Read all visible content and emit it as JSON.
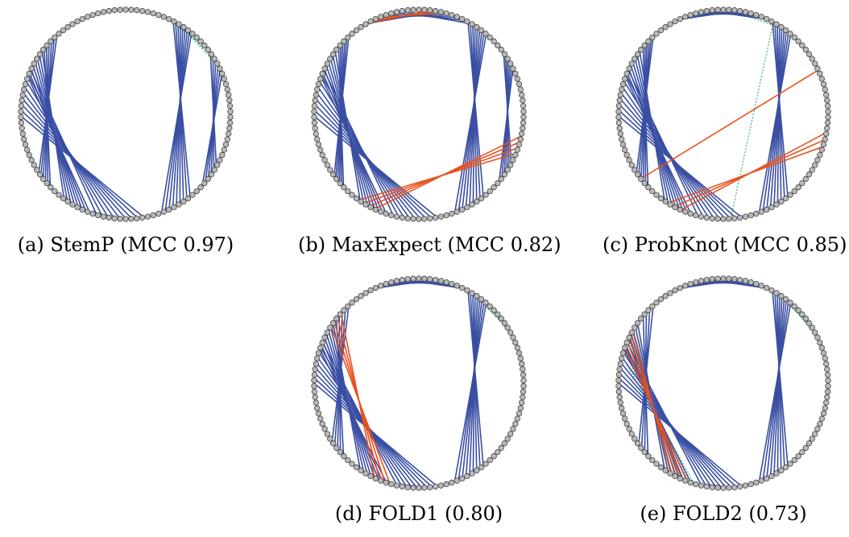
{
  "colors": {
    "correct": "#3a4fa3",
    "false_positive": "#e8521f",
    "missed": "#2fae6a",
    "nucleotide_fill": "#b8b8b8",
    "nucleotide_stroke": "#333333"
  },
  "panels": [
    {
      "id": "a",
      "caption": "(a) StemP (MCC 0.97)",
      "blue_groups": [
        {
          "a0": 236,
          "a1": 226,
          "b0": 319,
          "b1": 309,
          "n": 6
        },
        {
          "a0": 216,
          "a1": 200,
          "b0": 307,
          "b1": 291,
          "n": 8
        },
        {
          "a0": 196,
          "a1": 170,
          "b0": 295,
          "b1": 269,
          "n": 9
        },
        {
          "a0": 160,
          "a1": 142,
          "b0": 39,
          "b1": 27,
          "n": 9
        },
        {
          "a0": 133,
          "a1": 120,
          "b0": 67,
          "b1": 54,
          "n": 6
        },
        {
          "a0": 110,
          "a1": 80,
          "b0": 105,
          "b1": 75,
          "n": 1
        }
      ],
      "orange_groups": [],
      "green_groups": [
        {
          "a0": 262,
          "a1": 256,
          "b0": 243,
          "b1": 237,
          "n": 2
        },
        {
          "a0": 64,
          "a1": 50,
          "b0": 32,
          "b1": 22,
          "n": 3
        }
      ],
      "arc_start": 92,
      "arc_end": 88
    },
    {
      "id": "b",
      "caption": "(b) MaxExpect (MCC 0.82)",
      "blue_groups": [
        {
          "a0": 234,
          "a1": 226,
          "b0": 318,
          "b1": 310,
          "n": 6
        },
        {
          "a0": 214,
          "a1": 198,
          "b0": 307,
          "b1": 291,
          "n": 8
        },
        {
          "a0": 194,
          "a1": 170,
          "b0": 295,
          "b1": 269,
          "n": 9
        },
        {
          "a0": 160,
          "a1": 142,
          "b0": 40,
          "b1": 28,
          "n": 9
        },
        {
          "a0": 130,
          "a1": 118,
          "b0": 64,
          "b1": 54,
          "n": 6
        },
        {
          "a0": 30,
          "a1": 10,
          "b0": 350,
          "b1": 330,
          "n": 6
        }
      ],
      "orange_groups": [
        {
          "a0": 215,
          "a1": 205,
          "b0": 112,
          "b1": 102,
          "n": 4
        },
        {
          "a0": 14,
          "a1": 6,
          "b0": 338,
          "b1": 330,
          "n": 3
        },
        {
          "a0": 100,
          "a1": 90,
          "b0": 94,
          "b1": 86,
          "n": 2
        }
      ],
      "green_groups": [],
      "arc_start": 92,
      "arc_end": 88
    },
    {
      "id": "c",
      "caption": "(c) ProbKnot (MCC 0.85)",
      "blue_groups": [
        {
          "a0": 236,
          "a1": 226,
          "b0": 318,
          "b1": 310,
          "n": 6
        },
        {
          "a0": 214,
          "a1": 198,
          "b0": 307,
          "b1": 291,
          "n": 8
        },
        {
          "a0": 194,
          "a1": 170,
          "b0": 295,
          "b1": 269,
          "n": 9
        },
        {
          "a0": 160,
          "a1": 142,
          "b0": 40,
          "b1": 28,
          "n": 9
        },
        {
          "a0": 100,
          "a1": 80,
          "b0": 100,
          "b1": 80,
          "n": 1
        },
        {
          "a0": 25,
          "a1": 8,
          "b0": 352,
          "b1": 335,
          "n": 5
        }
      ],
      "orange_groups": [
        {
          "a0": 212,
          "a1": 204,
          "b0": 108,
          "b1": 100,
          "n": 3
        },
        {
          "a0": 232,
          "a1": 232,
          "b0": 65,
          "b1": 65,
          "n": 1
        }
      ],
      "green_groups": [
        {
          "a0": 35,
          "a1": 22,
          "b0": 2,
          "b1": 350,
          "n": 3
        }
      ],
      "arc_start": 92,
      "arc_end": 88
    },
    {
      "id": "d",
      "caption": "(d) FOLD1 (0.80)",
      "blue_groups": [
        {
          "a0": 236,
          "a1": 226,
          "b0": 318,
          "b1": 308,
          "n": 5
        },
        {
          "a0": 214,
          "a1": 198,
          "b0": 305,
          "b1": 289,
          "n": 8
        },
        {
          "a0": 192,
          "a1": 170,
          "b0": 293,
          "b1": 270,
          "n": 9
        },
        {
          "a0": 160,
          "a1": 142,
          "b0": 40,
          "b1": 28,
          "n": 9
        },
        {
          "a0": 110,
          "a1": 80,
          "b0": 100,
          "b1": 80,
          "n": 1
        },
        {
          "a0": 25,
          "a1": 8,
          "b0": 352,
          "b1": 335,
          "n": 5
        }
      ],
      "orange_groups": [
        {
          "a0": 205,
          "a1": 196,
          "b0": 312,
          "b1": 303,
          "n": 4
        },
        {
          "a0": 88,
          "a1": 82,
          "b0": 98,
          "b1": 92,
          "n": 2
        }
      ],
      "green_groups": [
        {
          "a0": 62,
          "a1": 56,
          "b0": 35,
          "b1": 28,
          "n": 2
        }
      ],
      "arc_start": 92,
      "arc_end": 88
    },
    {
      "id": "e",
      "caption": "(e) FOLD2 (0.73)",
      "blue_groups": [
        {
          "a0": 234,
          "a1": 226,
          "b0": 318,
          "b1": 310,
          "n": 4
        },
        {
          "a0": 214,
          "a1": 198,
          "b0": 305,
          "b1": 289,
          "n": 8
        },
        {
          "a0": 192,
          "a1": 170,
          "b0": 293,
          "b1": 270,
          "n": 9
        },
        {
          "a0": 160,
          "a1": 142,
          "b0": 40,
          "b1": 28,
          "n": 9
        },
        {
          "a0": 25,
          "a1": 8,
          "b0": 352,
          "b1": 335,
          "n": 5
        }
      ],
      "orange_groups": [
        {
          "a0": 210,
          "a1": 200,
          "b0": 300,
          "b1": 290,
          "n": 4
        },
        {
          "a0": 88,
          "a1": 82,
          "b0": 98,
          "b1": 92,
          "n": 2
        }
      ],
      "green_groups": [
        {
          "a0": 206,
          "a1": 196,
          "b0": 295,
          "b1": 285,
          "n": 4
        },
        {
          "a0": 66,
          "a1": 56,
          "b0": 40,
          "b1": 30,
          "n": 3
        }
      ],
      "arc_start": 92,
      "arc_end": 88
    }
  ]
}
